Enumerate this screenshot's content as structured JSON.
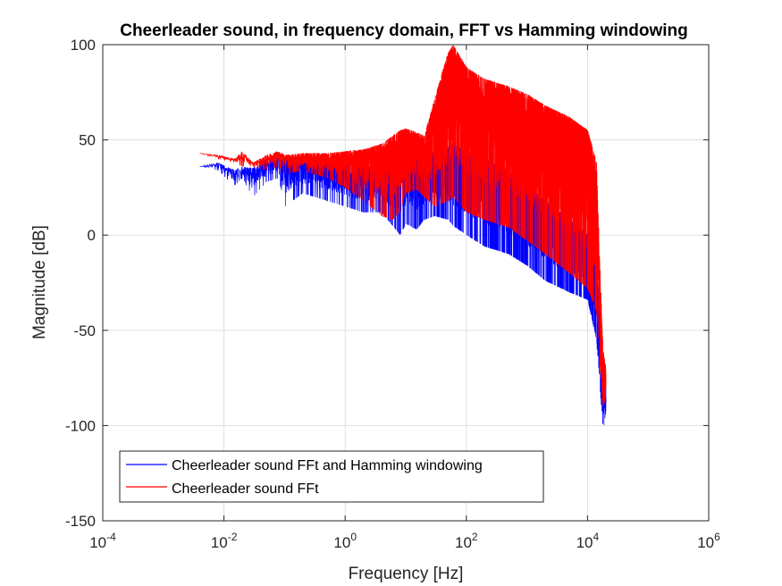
{
  "chart_data": {
    "type": "line",
    "title": "Cheerleader sound, in frequency domain, FFT vs Hamming windowing",
    "xlabel": "Frequency [Hz]",
    "ylabel": "Magnitude [dB]",
    "xscale": "log",
    "xlim": [
      0.0001,
      1000000
    ],
    "ylim": [
      -150,
      100
    ],
    "x_ticks": [
      {
        "base": "10",
        "exp": "-4"
      },
      {
        "base": "10",
        "exp": "-2"
      },
      {
        "base": "10",
        "exp": "0"
      },
      {
        "base": "10",
        "exp": "2"
      },
      {
        "base": "10",
        "exp": "4"
      },
      {
        "base": "10",
        "exp": "6"
      }
    ],
    "x_tick_values": [
      0.0001,
      0.01,
      1,
      100,
      10000,
      1000000
    ],
    "y_ticks": [
      "100",
      "50",
      "0",
      "-50",
      "-100",
      "-150"
    ],
    "y_tick_values": [
      100,
      50,
      0,
      -50,
      -100,
      -150
    ],
    "grid": true,
    "legend_position": "bottom-left",
    "series": [
      {
        "name": "Cheerleader sound FFt and Hamming windowing",
        "color": "#0000ff",
        "envelope": {
          "x": [
            0.004,
            0.008,
            0.015,
            0.02,
            0.03,
            0.05,
            0.08,
            0.1,
            0.2,
            0.5,
            1,
            2,
            4,
            6,
            8,
            10,
            15,
            20,
            30,
            50,
            60,
            100,
            200,
            500,
            1000,
            2000,
            5000,
            10000,
            14000,
            16000,
            18000,
            20000
          ],
          "upper": [
            36,
            38,
            34,
            36,
            35,
            40,
            41,
            40,
            40,
            39,
            38,
            36,
            38,
            42,
            46,
            47,
            44,
            40,
            44,
            46,
            48,
            44,
            40,
            34,
            26,
            18,
            8,
            0,
            -18,
            -40,
            -70,
            -78
          ],
          "lower": [
            36,
            34,
            26,
            30,
            20,
            28,
            30,
            15,
            22,
            18,
            15,
            12,
            12,
            5,
            0,
            6,
            3,
            8,
            10,
            8,
            5,
            0,
            -6,
            -10,
            -16,
            -24,
            -30,
            -34,
            -55,
            -80,
            -103,
            -92
          ]
        }
      },
      {
        "name": "Cheerleader sound FFt",
        "color": "#ff0000",
        "envelope": {
          "x": [
            0.004,
            0.008,
            0.015,
            0.02,
            0.03,
            0.05,
            0.08,
            0.1,
            0.2,
            0.5,
            1,
            2,
            4,
            6,
            8,
            10,
            15,
            20,
            30,
            50,
            60,
            100,
            200,
            500,
            1000,
            2000,
            5000,
            10000,
            14000,
            16000,
            18000,
            20000
          ],
          "upper": [
            43,
            42,
            40,
            44,
            38,
            42,
            44,
            42,
            43,
            43,
            44,
            45,
            48,
            52,
            55,
            56,
            54,
            52,
            72,
            96,
            100,
            88,
            82,
            78,
            74,
            68,
            62,
            55,
            38,
            -20,
            -60,
            -70
          ],
          "lower": [
            43,
            40,
            38,
            36,
            36,
            34,
            36,
            32,
            34,
            30,
            25,
            18,
            10,
            8,
            12,
            22,
            24,
            20,
            15,
            18,
            20,
            12,
            8,
            4,
            -3,
            -10,
            -20,
            -28,
            -40,
            -70,
            -90,
            -85
          ]
        }
      }
    ]
  }
}
